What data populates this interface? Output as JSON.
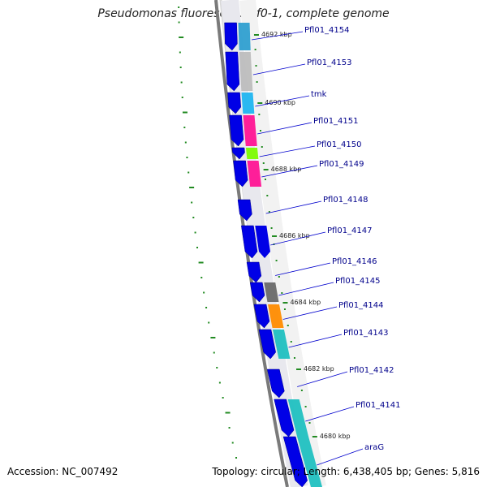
{
  "title": "Pseudomonas fluorescens Pf0-1, complete genome",
  "footer": {
    "accession": "Accession: NC_007492",
    "stats": "Topology: circular; Length: 6,438,405 bp; Genes: 5,816"
  },
  "colors": {
    "forward_gene": "#0000e6",
    "backbone_dark": "#7a7a7a",
    "backbone_light": "#c4c4c4",
    "tick": "#228b22",
    "label": "#00008b"
  },
  "kbp_marks": [
    "4692 kbp",
    "4690 kbp",
    "4688 kbp",
    "4686 kbp",
    "4684 kbp",
    "4682 kbp",
    "4680 kbp"
  ],
  "genes": [
    {
      "name": "Pfl01_4154",
      "cog_color": "#2f9fd0"
    },
    {
      "name": "Pfl01_4153",
      "cog_color": "#bdbdbd"
    },
    {
      "name": "tmk",
      "cog_color": "#1fb5f0"
    },
    {
      "name": "Pfl01_4151",
      "cog_color": "#ff1493"
    },
    {
      "name": "Pfl01_4150",
      "cog_color": "#7cfc00"
    },
    {
      "name": "Pfl01_4149",
      "cog_color": "#ff1493"
    },
    {
      "name": "Pfl01_4148",
      "cog_color": ""
    },
    {
      "name": "Pfl01_4147",
      "cog_color": ""
    },
    {
      "name": "Pfl01_4146",
      "cog_color": ""
    },
    {
      "name": "Pfl01_4145",
      "cog_color": "#696969"
    },
    {
      "name": "Pfl01_4144",
      "cog_color": "#ff8c00"
    },
    {
      "name": "Pfl01_4143",
      "cog_color": "#20c0c0"
    },
    {
      "name": "Pfl01_4142",
      "cog_color": ""
    },
    {
      "name": "Pfl01_4141",
      "cog_color": "#20c0c0"
    },
    {
      "name": "araG",
      "cog_color": "#20c0c0"
    }
  ]
}
